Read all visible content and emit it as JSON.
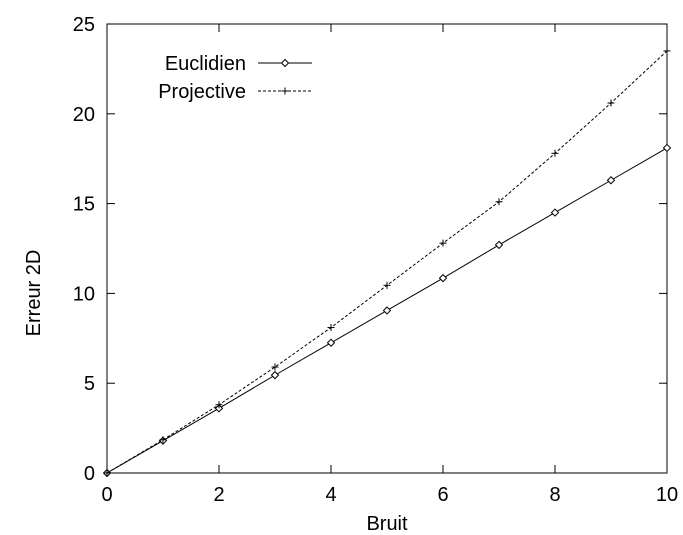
{
  "chart_data": {
    "type": "line",
    "xlabel": "Bruit",
    "ylabel": "Erreur 2D",
    "xlim": [
      0,
      10
    ],
    "ylim": [
      0,
      25
    ],
    "x_ticks": [
      0,
      2,
      4,
      6,
      8,
      10
    ],
    "y_ticks": [
      0,
      5,
      10,
      15,
      20,
      25
    ],
    "grid": false,
    "legend_position": "top-left",
    "series": [
      {
        "name": "Euclidien",
        "marker": "diamond",
        "line_style": "solid",
        "color": "#000000",
        "x": [
          0,
          1,
          2,
          3,
          4,
          5,
          6,
          7,
          8,
          9,
          10
        ],
        "y": [
          0,
          1.8,
          3.6,
          5.45,
          7.25,
          9.05,
          10.85,
          12.7,
          14.5,
          16.3,
          18.1
        ]
      },
      {
        "name": "Projective",
        "marker": "plus",
        "line_style": "dashed",
        "color": "#000000",
        "x": [
          0,
          1,
          2,
          3,
          4,
          5,
          6,
          7,
          8,
          9,
          10
        ],
        "y": [
          0,
          1.85,
          3.8,
          5.9,
          8.1,
          10.45,
          12.8,
          15.1,
          17.8,
          20.6,
          23.5
        ]
      }
    ]
  }
}
